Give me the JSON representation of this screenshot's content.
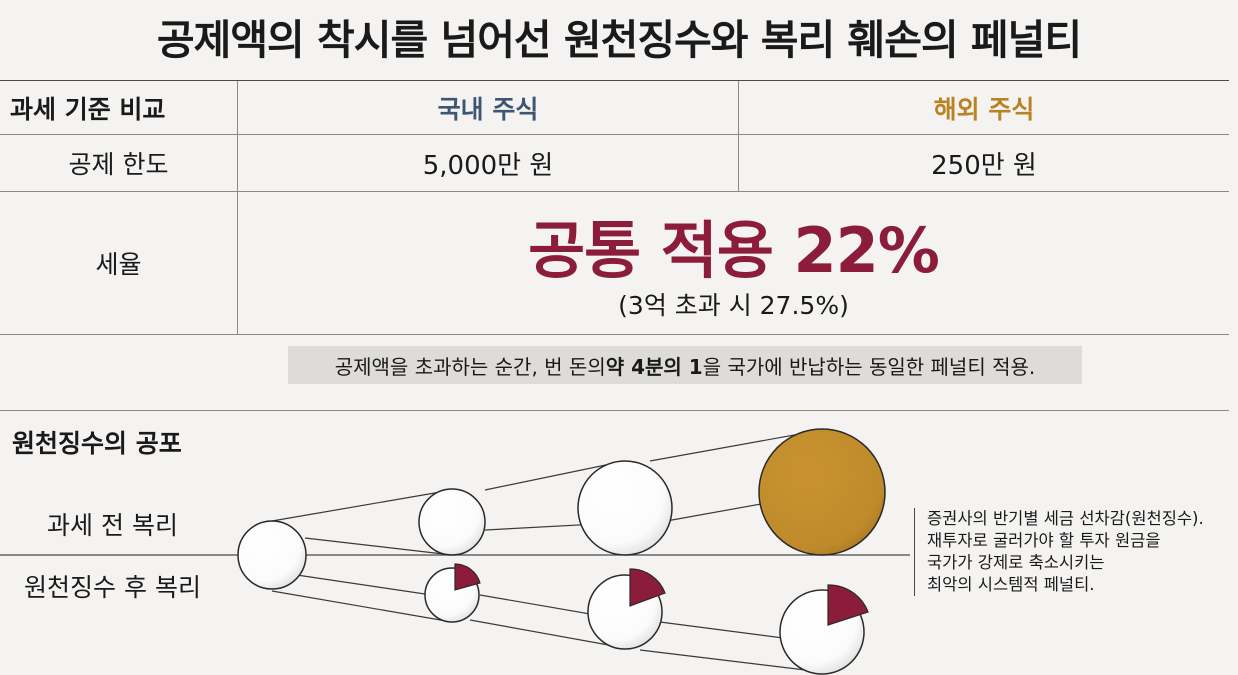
{
  "title": "공제액의 착시를 넘어선 원천징수와 복리 훼손의 페널티",
  "table": {
    "header_label": "과세 기준 비교",
    "domestic_header": "국내 주식",
    "foreign_header": "해외 주식",
    "deduction_label": "공제 한도",
    "deduction_domestic": "5,000만 원",
    "deduction_foreign": "250만 원",
    "rate_label": "세율",
    "rate_main": "공통 적용 22%",
    "rate_sub": "(3억 초과 시 27.5%)"
  },
  "note": {
    "before": "공제액을 초과하는 순간, 번 돈의 ",
    "bold": "약 4분의 1",
    "after": "을 국가에 반납하는 동일한 페널티 적용."
  },
  "section": {
    "title": "원천징수의 공포",
    "label_pre_tax": "과세 전 복리",
    "label_post_tax": "원천징수 후 복리",
    "side_note": [
      "증권사의 반기별 세금 선차감(원천징수).",
      "재투자로 굴러가야 할 투자 원금을",
      "국가가 강제로 축소시키는",
      "최악의 시스템적 페널티."
    ]
  },
  "colors": {
    "title": "#1a1a1a",
    "domestic": "#3f5673",
    "foreign": "#b88325",
    "accent": "#8c1d3a",
    "gold_ball": "#c08a2e",
    "white_ball": "#ffffff",
    "note_bg": "#dedcd9"
  }
}
